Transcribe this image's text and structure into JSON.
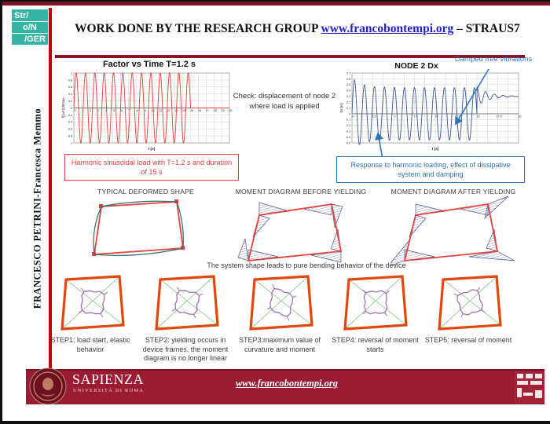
{
  "header": {
    "logo_lines": [
      "Str/",
      "o/N",
      "/GER"
    ],
    "title": "WORK DONE BY THE RESEARCH GROUP",
    "link": "www.francobontempi.org",
    "suffix": "– STRAUS7"
  },
  "sidebar": {
    "author": "FRANCESCO PETRINI-Francesca Memmo"
  },
  "chart_data": [
    {
      "type": "line",
      "title": "Factor vs Time T=1.2 s",
      "xlabel": "t [s]",
      "ylabel": "f(t)=F(t)/Fmax",
      "xlim": [
        0,
        20
      ],
      "ylim": [
        -1,
        1
      ],
      "xtick_step": 1,
      "ytick_step": 0.2,
      "xgrid_step": 1,
      "grid": true,
      "legend": "none",
      "series": [
        {
          "name": "harmonic load factor",
          "model": "sine",
          "period_s": 1.2,
          "amplitude": 1,
          "duration_s": 15,
          "color": "#e8403a"
        }
      ]
    },
    {
      "type": "line",
      "title": "NODE 2 Dx",
      "xlabel": "t [s]",
      "ylabel": "Dx [m]",
      "xlim": [
        0,
        20
      ],
      "ylim": [
        -0.5,
        0.7
      ],
      "xtick_step": 2.5,
      "ytick_step": 0.1,
      "xgrid_step": 1.25,
      "grid": true,
      "legend": "none",
      "annotation": "Damped free vibrations",
      "series": [
        {
          "name": "node 2 displacement Dx",
          "model": "damped_response",
          "period_s": 1.2,
          "first_peak_m": 0.62,
          "steady_amplitude_m": 0.45,
          "load_end_s": 15,
          "residual_m": 0.3,
          "color": "#3a5795"
        }
      ]
    }
  ],
  "notes": {
    "check": "Check: displacement of node 2 where load is applied",
    "load_box": "Harmonic sinusoidal load with T=1.2 s and duration of 15 s",
    "response_box": "Response to harmonic loading, effect of dissipative system and damping"
  },
  "diagrams": {
    "deformed": "TYPICAL DEFORMED SHAPE",
    "moment_before": "MOMENT DIAGRAM BEFORE YIELDING",
    "moment_after": "MOMENT DIAGRAM AFTER YIELDING",
    "caption": "The system shape leads to pure bending behavior of the device"
  },
  "steps": [
    {
      "label": "STEP1: load start, elastic behavior"
    },
    {
      "label": "STEP2: yielding occurs in device frames, the moment diagram is no longer linear"
    },
    {
      "label": "STEP3:maximum value of curvature and moment"
    },
    {
      "label": "STEP4: reversal of moment starts"
    },
    {
      "label": "STEP5: reversal of moment"
    }
  ],
  "footer": {
    "university": "SAPIENZA",
    "university_sub": "UNIVERSITÀ DI ROMA",
    "link": "www.francobontempi.org"
  },
  "colors": {
    "maroon": "#9b1b33",
    "maroon_dark": "#7c1226",
    "rule": "#8e1021",
    "teal": "#35b3a4",
    "red_line": "#c00000",
    "chart_red": "#e8403a",
    "chart_blue": "#3a5795",
    "annot_blue": "#2e74b5",
    "box_red": "#f03b3b",
    "green": "#9ccc9c",
    "orange": "#e2470d",
    "purple": "#9e6fae"
  }
}
